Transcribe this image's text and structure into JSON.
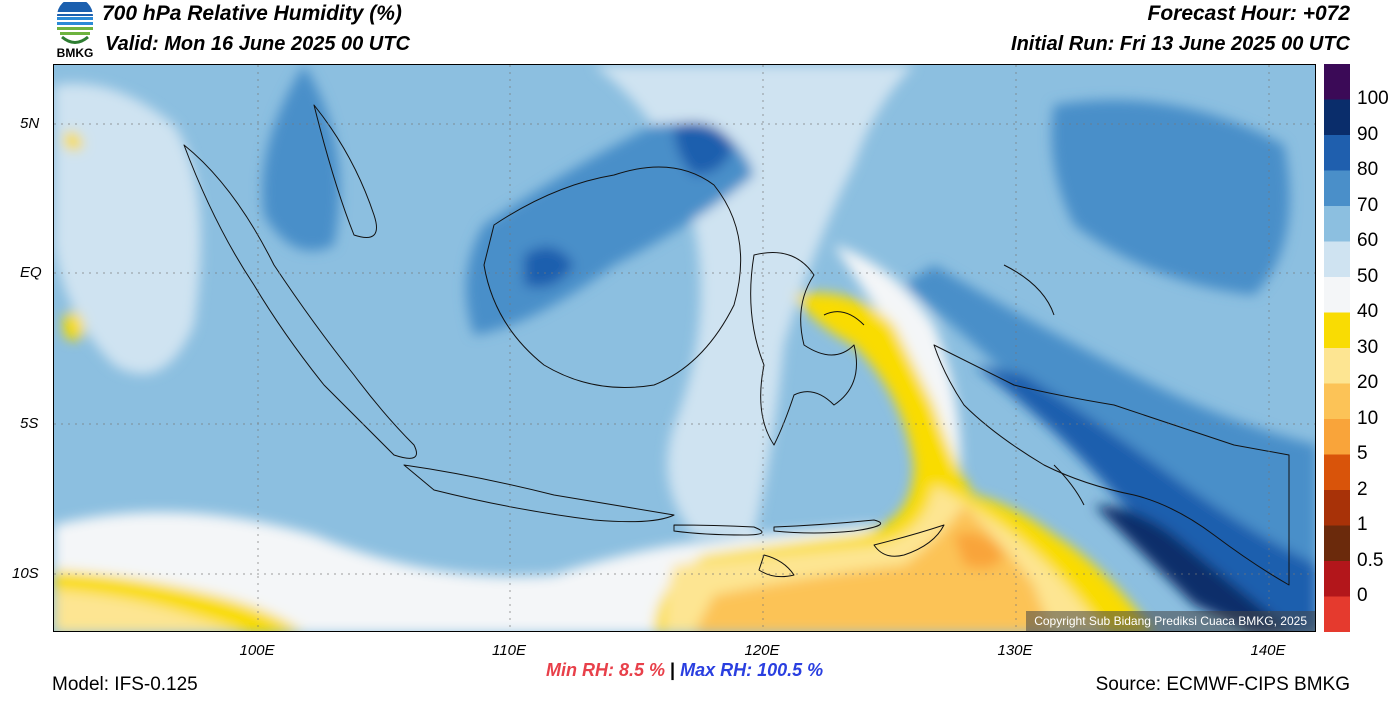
{
  "header": {
    "title": "700 hPa Relative Humidity (%)",
    "valid": "Valid: Mon 16 June 2025 00 UTC",
    "forecast_hour": "Forecast Hour: +072",
    "initial_run": "Initial Run: Fri 13 June 2025 00 UTC",
    "logo_text": "BMKG"
  },
  "axes": {
    "lat_labels": [
      "5N",
      "EQ",
      "5S",
      "10S"
    ],
    "lon_labels": [
      "100E",
      "110E",
      "120E",
      "130E",
      "140E"
    ]
  },
  "colorbar": {
    "labels": [
      "100",
      "90",
      "80",
      "70",
      "60",
      "50",
      "40",
      "30",
      "20",
      "10",
      "5",
      "2",
      "1",
      "0.5",
      "0"
    ],
    "colors": [
      "#3b0a57",
      "#0a2d6b",
      "#1f5fae",
      "#4a8fc9",
      "#8cbfe0",
      "#cfe3f1",
      "#f4f6f8",
      "#f9dc03",
      "#fde592",
      "#fcc357",
      "#f9a43a",
      "#d9540a",
      "#a83208",
      "#6b2a0c",
      "#b3161b",
      "#e53a2e"
    ]
  },
  "stats": {
    "min_label": "Min RH:",
    "min_value": "8.5 %",
    "separator": "|",
    "max_label": "Max RH:",
    "max_value": "100.5 %"
  },
  "footer": {
    "model": "Model: IFS-0.125",
    "source": "Source: ECMWF-CIPS BMKG",
    "copyright": "Copyright Sub Bidang Prediksi Cuaca BMKG, 2025"
  }
}
